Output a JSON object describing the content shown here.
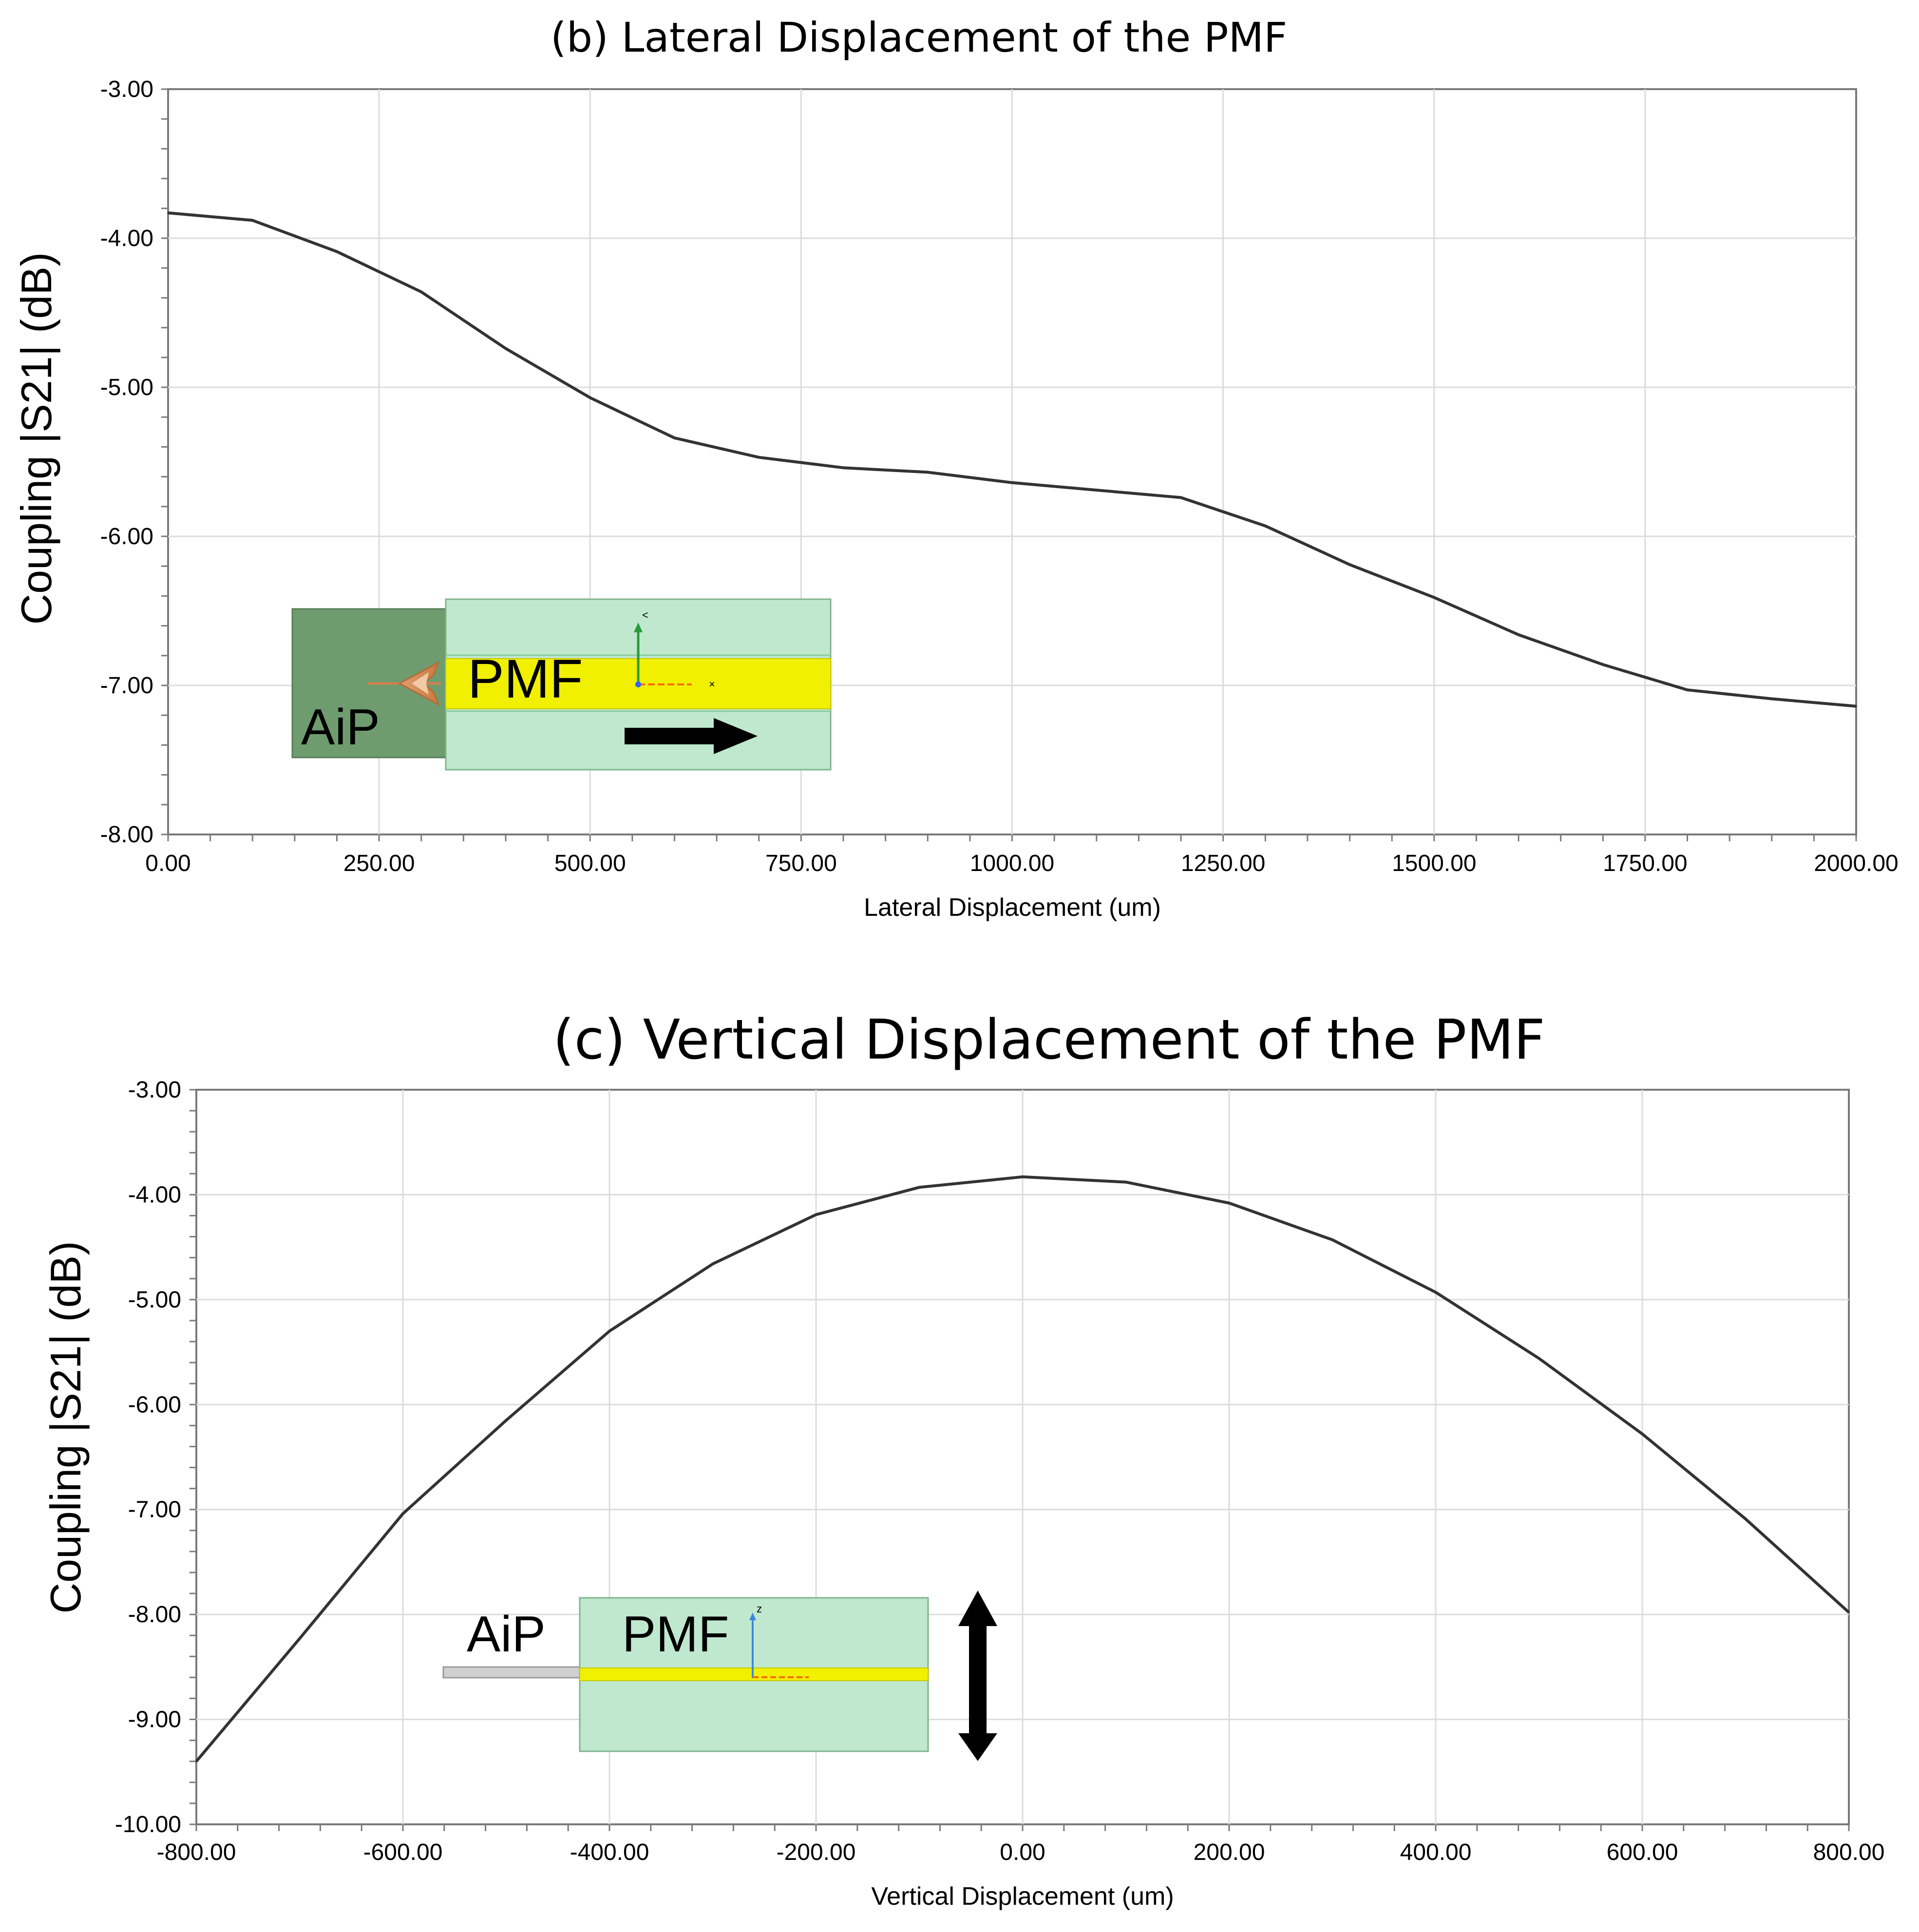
{
  "titles": {
    "b": "(b) Lateral Displacement of the PMF",
    "c": "(c) Vertical Displacement of the PMF"
  },
  "chart_data": [
    {
      "id": "b",
      "type": "line",
      "title": "(b) Lateral Displacement of the PMF",
      "xlabel": "Lateral Displacement (um)",
      "ylabel": "Coupling |S21| (dB)",
      "xlim": [
        0,
        2000
      ],
      "ylim": [
        -8,
        -3
      ],
      "x_ticks": [
        0,
        250,
        500,
        750,
        1000,
        1250,
        1500,
        1750,
        2000
      ],
      "x_tick_labels": [
        "0.00",
        "250.00",
        "500.00",
        "750.00",
        "1000.00",
        "1250.00",
        "1500.00",
        "1750.00",
        "2000.00"
      ],
      "y_ticks": [
        -3,
        -4,
        -5,
        -6,
        -7,
        -8
      ],
      "y_tick_labels": [
        "-3.00",
        "-4.00",
        "-5.00",
        "-6.00",
        "-7.00",
        "-8.00"
      ],
      "grid": true,
      "line_color": "#333333",
      "series": [
        {
          "x": [
            0,
            100,
            200,
            300,
            400,
            500,
            600,
            700,
            800,
            900,
            1000,
            1100,
            1200,
            1300,
            1400,
            1500,
            1600,
            1700,
            1800,
            1900,
            2000
          ],
          "y": [
            -3.83,
            -3.88,
            -4.09,
            -4.36,
            -4.74,
            -5.07,
            -5.34,
            -5.47,
            -5.54,
            -5.57,
            -5.64,
            -5.69,
            -5.74,
            -5.93,
            -6.19,
            -6.41,
            -6.66,
            -6.86,
            -7.03,
            -7.09,
            -7.14
          ]
        }
      ],
      "inset": {
        "aip_label": "AiP",
        "pmf_label": "PMF",
        "arrow": "horizontal"
      }
    },
    {
      "id": "c",
      "type": "line",
      "title": "(c) Vertical Displacement of the PMF",
      "xlabel": "Vertical Displacement (um)",
      "ylabel": "Coupling |S21| (dB)",
      "xlim": [
        -800,
        800
      ],
      "ylim": [
        -10,
        -3
      ],
      "x_ticks": [
        -800,
        -600,
        -400,
        -200,
        0,
        200,
        400,
        600,
        800
      ],
      "x_tick_labels": [
        "-800.00",
        "-600.00",
        "-400.00",
        "-200.00",
        "0.00",
        "200.00",
        "400.00",
        "600.00",
        "800.00"
      ],
      "y_ticks": [
        -3,
        -4,
        -5,
        -6,
        -7,
        -8,
        -9,
        -10
      ],
      "y_tick_labels": [
        "-3.00",
        "-4.00",
        "-5.00",
        "-6.00",
        "-7.00",
        "-8.00",
        "-9.00",
        "-10.00"
      ],
      "grid": true,
      "line_color": "#333333",
      "series": [
        {
          "x": [
            -800,
            -700,
            -600,
            -500,
            -400,
            -300,
            -200,
            -100,
            0,
            100,
            200,
            300,
            400,
            500,
            600,
            700,
            800
          ],
          "y": [
            -9.4,
            -8.23,
            -7.04,
            -6.15,
            -5.3,
            -4.66,
            -4.19,
            -3.93,
            -3.83,
            -3.88,
            -4.08,
            -4.43,
            -4.93,
            -5.56,
            -6.28,
            -7.09,
            -7.98
          ]
        }
      ],
      "inset": {
        "aip_label": "AiP",
        "pmf_label": "PMF",
        "arrow": "vertical"
      }
    }
  ]
}
